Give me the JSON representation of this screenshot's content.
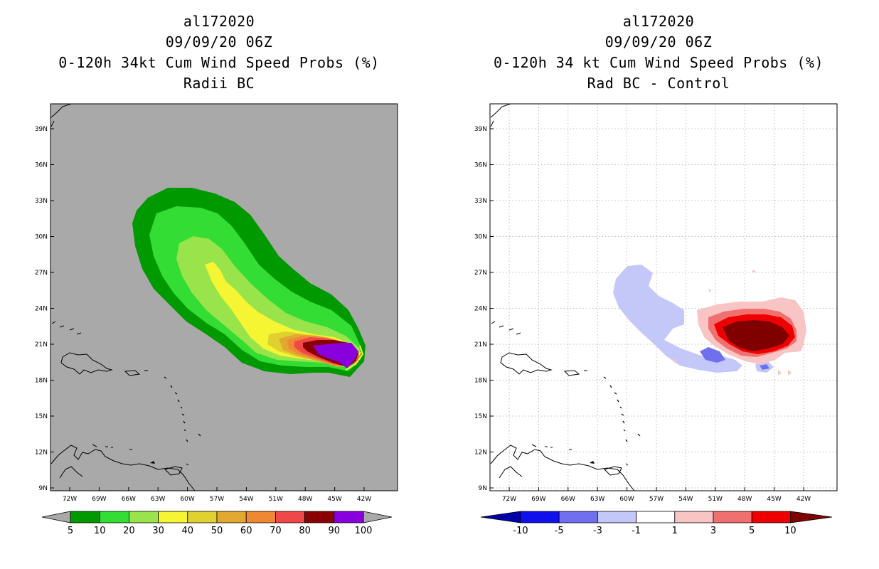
{
  "left_panel": {
    "title_lines": [
      "al172020",
      "09/09/20 06Z",
      "0-120h 34kt Cum Wind Speed Probs (%)",
      "Radii BC"
    ],
    "lat_labels": [
      "39N",
      "36N",
      "33N",
      "30N",
      "27N",
      "24N",
      "21N",
      "18N",
      "15N",
      "12N",
      "9N"
    ],
    "lon_labels": [
      "72W",
      "69W",
      "66W",
      "63W",
      "60W",
      "57W",
      "54W",
      "51W",
      "48W",
      "45W",
      "42W"
    ],
    "colorbar": {
      "labels": [
        "5",
        "10",
        "20",
        "30",
        "40",
        "50",
        "60",
        "70",
        "80",
        "90",
        "100"
      ],
      "colors": [
        "#009900",
        "#33dd33",
        "#99e44a",
        "#f5f533",
        "#e0d030",
        "#e2a830",
        "#ee8833",
        "#f04848",
        "#8b0000",
        "#8800dd"
      ]
    }
  },
  "right_panel": {
    "title_lines": [
      "al172020",
      "09/09/20 06Z",
      "0-120h 34 kt Cum Wind Speed Probs (%)",
      "Rad BC - Control"
    ],
    "lat_labels": [
      "39N",
      "36N",
      "33N",
      "30N",
      "27N",
      "24N",
      "21N",
      "18N",
      "15N",
      "12N",
      "9N"
    ],
    "lon_labels": [
      "72W",
      "69W",
      "66W",
      "63W",
      "60W",
      "57W",
      "54W",
      "51W",
      "48W",
      "45W",
      "42W"
    ],
    "colorbar": {
      "labels": [
        "-10",
        "-5",
        "-3",
        "-1",
        "1",
        "3",
        "5",
        "10"
      ],
      "colors": [
        "#0000aa",
        "#1010ee",
        "#7070ee",
        "#c4c8f8",
        "#ffffff",
        "#f8c4c4",
        "#f07070",
        "#ee0000",
        "#800000"
      ]
    }
  }
}
